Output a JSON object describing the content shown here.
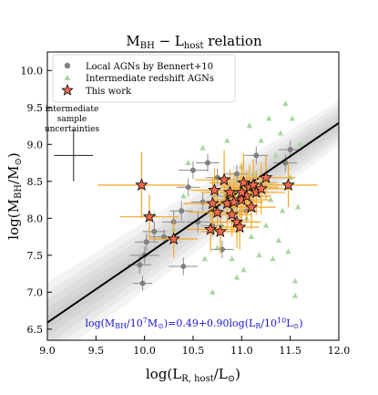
{
  "chart_data": {
    "type": "scatter",
    "title": "M_BH − L_host relation",
    "title_main": "M",
    "title_sub1": "BH",
    "title_mid": " − L",
    "title_sub2": "host",
    "title_tail": " relation",
    "xlabel": "log(L_R,host/L_⊙)",
    "xlabel_parts": {
      "pre": "log(L",
      "sub": "R, host",
      "post": "/L",
      "sub2": "⊙",
      "end": ")"
    },
    "ylabel": "log(M_BH/M_⊙)",
    "ylabel_parts": {
      "pre": "log(M",
      "sub": "BH",
      "post": "/M",
      "sub2": "⊙",
      "end": ")"
    },
    "xlim": [
      9.0,
      12.0
    ],
    "ylim": [
      6.35,
      10.25
    ],
    "xticks": [
      "9.0",
      "9.5",
      "10.0",
      "10.5",
      "11.0",
      "11.5",
      "12.0"
    ],
    "yticks": [
      "6.5",
      "7.0",
      "7.5",
      "8.0",
      "8.5",
      "9.0",
      "9.5",
      "10.0"
    ],
    "grid": false,
    "legend_placement": "top-left",
    "fit": {
      "intercept": 0.49,
      "slope": 0.9,
      "x_pivot": 10,
      "y_pivot": 7
    },
    "fit_label": "log(M_BH/10^7M_⊙)=0.49+0.90log(L_R/10^10L_⊙)",
    "fit_label_parts": {
      "a": "log(M",
      "b": "BH",
      "c": "/10",
      "d": "7",
      "e": "M",
      "f": "⊙",
      "g": ")=0.49+0.90log(L",
      "h": "R",
      "i": "/10",
      "j": "10",
      "k": "L",
      "l": "⊙",
      "m": ")"
    },
    "uncertainty_note": [
      "intermediate",
      "sample",
      "uncertainties"
    ],
    "uncertainty_bar": {
      "x": 9.27,
      "y": 8.85,
      "xerr": 0.2,
      "yerr": 0.35
    },
    "series": [
      {
        "name": "Local AGNs by Bennert+10",
        "marker": "circle",
        "color": "#808080",
        "points": [
          [
            9.95,
            7.37,
            0.12,
            0.12
          ],
          [
            9.98,
            7.12,
            0.1,
            0.1
          ],
          [
            10.0,
            7.5,
            0.15,
            0.12
          ],
          [
            10.02,
            7.68,
            0.12,
            0.12
          ],
          [
            10.1,
            7.82,
            0.12,
            0.14
          ],
          [
            10.2,
            7.75,
            0.15,
            0.1
          ],
          [
            10.3,
            7.95,
            0.12,
            0.15
          ],
          [
            10.38,
            8.1,
            0.12,
            0.13
          ],
          [
            10.4,
            7.35,
            0.15,
            0.12
          ],
          [
            10.45,
            8.42,
            0.12,
            0.12
          ],
          [
            10.5,
            8.65,
            0.15,
            0.12
          ],
          [
            10.55,
            7.95,
            0.12,
            0.15
          ],
          [
            10.6,
            8.22,
            0.12,
            0.12
          ],
          [
            10.65,
            8.75,
            0.12,
            0.12
          ],
          [
            10.7,
            7.9,
            0.12,
            0.15
          ],
          [
            10.75,
            8.55,
            0.12,
            0.12
          ],
          [
            10.8,
            7.58,
            0.12,
            0.12
          ],
          [
            10.85,
            8.3,
            0.15,
            0.12
          ],
          [
            10.95,
            8.6,
            0.12,
            0.12
          ],
          [
            11.05,
            8.1,
            0.12,
            0.12
          ],
          [
            11.15,
            8.85,
            0.12,
            0.12
          ],
          [
            11.45,
            8.75,
            0.12,
            0.12
          ],
          [
            11.5,
            8.93,
            0.12,
            0.12
          ]
        ]
      },
      {
        "name": "Intermediate redshift AGNs",
        "marker": "triangle",
        "color": "#a8d8a0",
        "points": [
          [
            10.1,
            8.05
          ],
          [
            10.3,
            7.85
          ],
          [
            10.4,
            8.3
          ],
          [
            10.45,
            8.75
          ],
          [
            10.6,
            8.95
          ],
          [
            10.62,
            7.45
          ],
          [
            10.7,
            7.0
          ],
          [
            10.75,
            7.6
          ],
          [
            10.8,
            7.9
          ],
          [
            10.82,
            8.3
          ],
          [
            10.85,
            9.05
          ],
          [
            10.9,
            7.45
          ],
          [
            10.92,
            8.15
          ],
          [
            10.95,
            7.2
          ],
          [
            11.0,
            8.7
          ],
          [
            11.02,
            7.3
          ],
          [
            11.05,
            8.0
          ],
          [
            11.08,
            9.25
          ],
          [
            11.1,
            7.75
          ],
          [
            11.12,
            8.6
          ],
          [
            11.15,
            8.35
          ],
          [
            11.18,
            7.5
          ],
          [
            11.2,
            9.05
          ],
          [
            11.22,
            8.45
          ],
          [
            11.25,
            7.9
          ],
          [
            11.28,
            9.35
          ],
          [
            11.3,
            8.25
          ],
          [
            11.32,
            7.45
          ],
          [
            11.35,
            8.85
          ],
          [
            11.38,
            7.7
          ],
          [
            11.4,
            9.15
          ],
          [
            11.42,
            8.1
          ],
          [
            11.45,
            9.55
          ],
          [
            11.48,
            7.55
          ],
          [
            11.5,
            8.55
          ],
          [
            11.52,
            9.35
          ],
          [
            11.55,
            7.15
          ],
          [
            11.58,
            8.15
          ],
          [
            11.6,
            9.0
          ],
          [
            11.55,
            6.95
          ]
        ]
      },
      {
        "name": "This work",
        "marker": "star",
        "color": "#f26a4f",
        "errcolor": "#f5a623",
        "points": [
          [
            9.97,
            8.45,
            0.45,
            0.45
          ],
          [
            10.05,
            8.02,
            0.3,
            0.3
          ],
          [
            10.3,
            7.72,
            0.25,
            0.25
          ],
          [
            10.68,
            7.85,
            0.25,
            0.3
          ],
          [
            10.7,
            8.2,
            0.3,
            0.35
          ],
          [
            10.72,
            8.38,
            0.25,
            0.3
          ],
          [
            10.75,
            8.08,
            0.3,
            0.3
          ],
          [
            10.78,
            7.82,
            0.2,
            0.3
          ],
          [
            10.82,
            8.52,
            0.3,
            0.4
          ],
          [
            10.85,
            8.2,
            0.25,
            0.35
          ],
          [
            10.88,
            8.35,
            0.3,
            0.3
          ],
          [
            10.9,
            8.05,
            0.2,
            0.3
          ],
          [
            10.92,
            8.22,
            0.3,
            0.4
          ],
          [
            10.95,
            7.95,
            0.25,
            0.35
          ],
          [
            10.98,
            7.88,
            0.2,
            0.3
          ],
          [
            11.0,
            8.25,
            0.3,
            0.35
          ],
          [
            11.02,
            8.48,
            0.35,
            0.4
          ],
          [
            11.05,
            8.3,
            0.25,
            0.35
          ],
          [
            11.08,
            8.42,
            0.3,
            0.3
          ],
          [
            11.1,
            8.15,
            0.25,
            0.3
          ],
          [
            11.12,
            8.45,
            0.35,
            0.35
          ],
          [
            11.15,
            8.35,
            0.3,
            0.3
          ],
          [
            11.2,
            8.4,
            0.3,
            0.35
          ],
          [
            11.25,
            8.55,
            0.3,
            0.3
          ],
          [
            11.48,
            8.45,
            0.3,
            0.3
          ],
          [
            11.0,
            8.35,
            0.2,
            0.4
          ]
        ]
      }
    ]
  }
}
